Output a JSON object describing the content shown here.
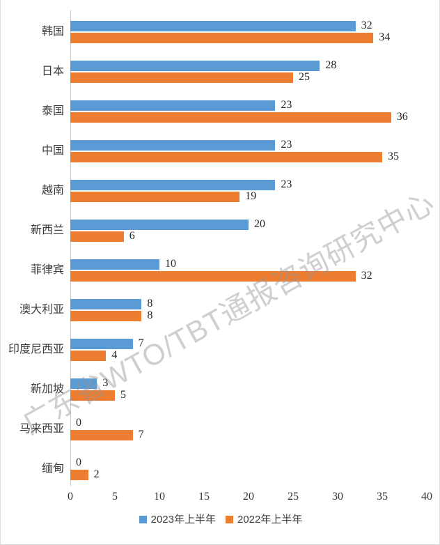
{
  "watermark": "广东省WTO/TBT通报咨询研究中心",
  "colors": {
    "series_2023": "#5B9BD5",
    "series_2022": "#ED7D31",
    "axis_line": "#c9c9c9",
    "value_text": "#262626",
    "category_text": "#3b3b3b",
    "watermark_text": "#949494"
  },
  "chart_data": {
    "type": "bar",
    "orientation": "horizontal",
    "title": "",
    "xlabel": "",
    "ylabel": "",
    "categories": [
      "韩国",
      "日本",
      "泰国",
      "中国",
      "越南",
      "新西兰",
      "菲律宾",
      "澳大利亚",
      "印度尼西亚",
      "新加坡",
      "马来西亚",
      "缅甸"
    ],
    "series": [
      {
        "name": "2023年上半年",
        "color": "#5B9BD5",
        "values": [
          32,
          28,
          23,
          23,
          23,
          20,
          10,
          8,
          7,
          3,
          0,
          0
        ]
      },
      {
        "name": "2022年上半年",
        "color": "#ED7D31",
        "values": [
          34,
          25,
          36,
          35,
          19,
          6,
          32,
          8,
          4,
          5,
          7,
          2
        ]
      }
    ],
    "xlim": [
      0,
      40
    ],
    "x_ticks": [
      0,
      5,
      10,
      15,
      20,
      25,
      30,
      35,
      40
    ],
    "grid": false,
    "data_labels": true,
    "legend_position": "bottom"
  }
}
